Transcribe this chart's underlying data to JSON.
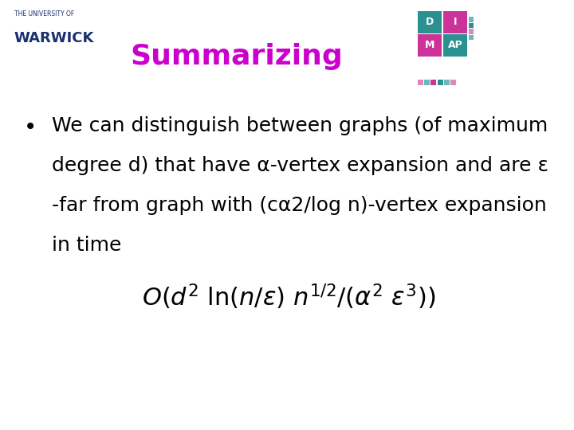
{
  "title": "Summarizing",
  "title_color": "#cc00cc",
  "title_fontsize": 26,
  "background_color": "#ffffff",
  "bullet_text_lines": [
    "We can distinguish between graphs (of maximum",
    "degree d) that have α-vertex expansion and are ε",
    "-far from graph with (cα2/log n)-vertex expansion",
    "in time"
  ],
  "bullet_fontsize": 18,
  "formula_fontsize": 22,
  "warwick_text_small": "THE UNIVERSITY OF",
  "warwick_text_large": "WARWICK",
  "warwick_color": "#1a2f6e",
  "dimap_colors": {
    "teal": "#2a9090",
    "pink": "#cc3399",
    "light_teal": "#66bbbb",
    "light_pink": "#dd88bb"
  }
}
